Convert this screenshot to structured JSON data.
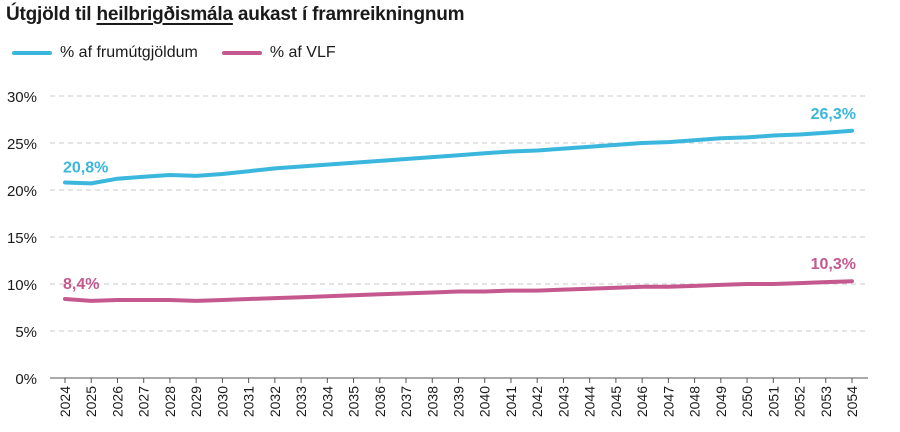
{
  "title": {
    "prefix": "Útgjöld til ",
    "highlight": "heilbrigðismála",
    "suffix": " aukast í framreikningnum"
  },
  "chart_data": {
    "type": "line",
    "x": [
      "2024",
      "2025",
      "2026",
      "2027",
      "2028",
      "2029",
      "2030",
      "2031",
      "2032",
      "2033",
      "2034",
      "2035",
      "2036",
      "2037",
      "2038",
      "2039",
      "2040",
      "2041",
      "2042",
      "2043",
      "2044",
      "2045",
      "2046",
      "2047",
      "2048",
      "2049",
      "2050",
      "2051",
      "2052",
      "2053",
      "2054"
    ],
    "ylim": [
      0,
      30
    ],
    "yticks": [
      0,
      5,
      10,
      15,
      20,
      25,
      30
    ],
    "ytick_labels": [
      "0%",
      "5%",
      "10%",
      "15%",
      "20%",
      "25%",
      "30%"
    ],
    "grid": "horizontal-dashed",
    "legend_position": "top-left",
    "series": [
      {
        "name": "% af frumútgjöldum",
        "color": "#3bb7dd",
        "values": [
          20.8,
          20.7,
          21.2,
          21.4,
          21.6,
          21.5,
          21.7,
          22.0,
          22.3,
          22.5,
          22.7,
          22.9,
          23.1,
          23.3,
          23.5,
          23.7,
          23.9,
          24.1,
          24.2,
          24.4,
          24.6,
          24.8,
          25.0,
          25.1,
          25.3,
          25.5,
          25.6,
          25.8,
          25.9,
          26.1,
          26.3
        ],
        "start_label": "20,8%",
        "end_label": "26,3%"
      },
      {
        "name": "% af VLF",
        "color": "#c5588f",
        "values": [
          8.4,
          8.2,
          8.3,
          8.3,
          8.3,
          8.2,
          8.3,
          8.4,
          8.5,
          8.6,
          8.7,
          8.8,
          8.9,
          9.0,
          9.1,
          9.2,
          9.2,
          9.3,
          9.3,
          9.4,
          9.5,
          9.6,
          9.7,
          9.7,
          9.8,
          9.9,
          10.0,
          10.0,
          10.1,
          10.2,
          10.3
        ],
        "start_label": "8,4%",
        "end_label": "10,3%"
      }
    ]
  }
}
